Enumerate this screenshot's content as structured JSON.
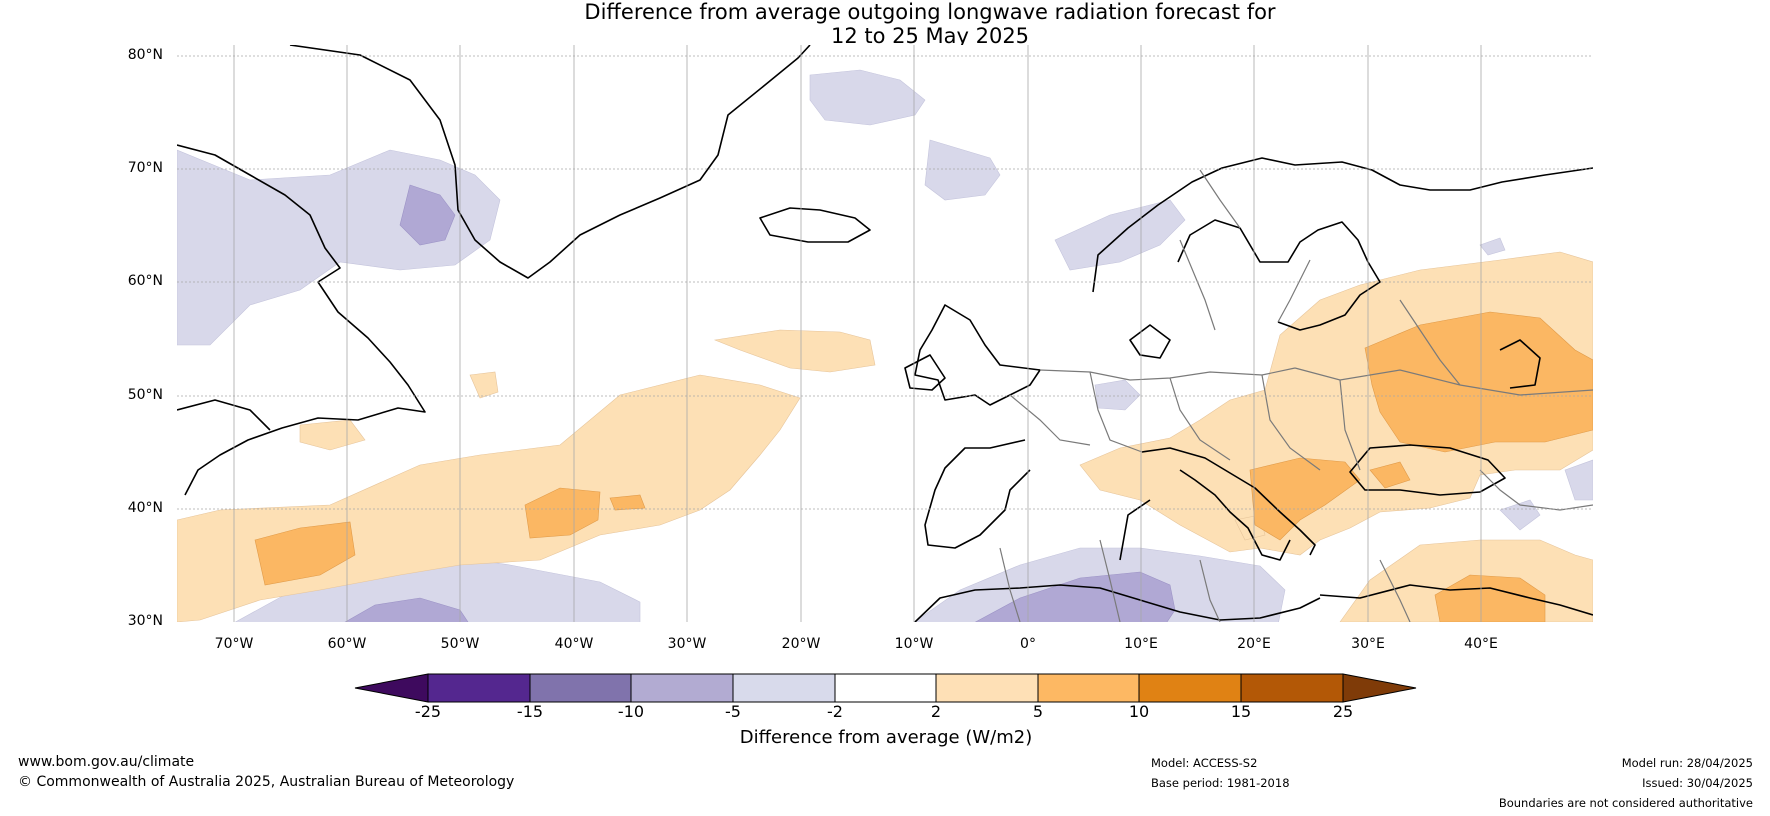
{
  "title": {
    "line1": "Difference from average outgoing longwave radiation forecast for",
    "line2": "12 to 25 May 2025"
  },
  "map": {
    "lat_labels": [
      "80°N",
      "70°N",
      "60°N",
      "50°N",
      "40°N",
      "30°N"
    ],
    "lon_labels": [
      "70°W",
      "60°W",
      "50°W",
      "40°W",
      "30°W",
      "20°W",
      "10°W",
      "0°",
      "10°E",
      "20°E",
      "30°E",
      "40°E"
    ],
    "colors": {
      "neg_5_to_2": "#d8d8ea",
      "neg_10_to_5": "#b0a8d4",
      "pos_2_to_5": "#fde0b5",
      "pos_5_to_10": "#fbb763"
    }
  },
  "colorbar": {
    "ticks": [
      "-25",
      "-15",
      "-10",
      "-5",
      "-2",
      "2",
      "5",
      "10",
      "15",
      "25"
    ],
    "colors": [
      "#3e0a5e",
      "#54278f",
      "#8073ac",
      "#b2abd2",
      "#d8daeb",
      "#ffffff",
      "#fee0b6",
      "#fdb863",
      "#e08214",
      "#b35806",
      "#7f3b08"
    ],
    "label": "Difference from average (W/m2)"
  },
  "footer": {
    "website": "www.bom.gov.au/climate",
    "copyright": "© Commonwealth of Australia 2025, Australian Bureau of Meteorology",
    "model": "Model: ACCESS-S2",
    "base_period": "Base period: 1981-2018",
    "model_run": "Model run: 28/04/2025",
    "issued": "Issued: 30/04/2025",
    "disclaimer": "Boundaries are not considered authoritative"
  }
}
